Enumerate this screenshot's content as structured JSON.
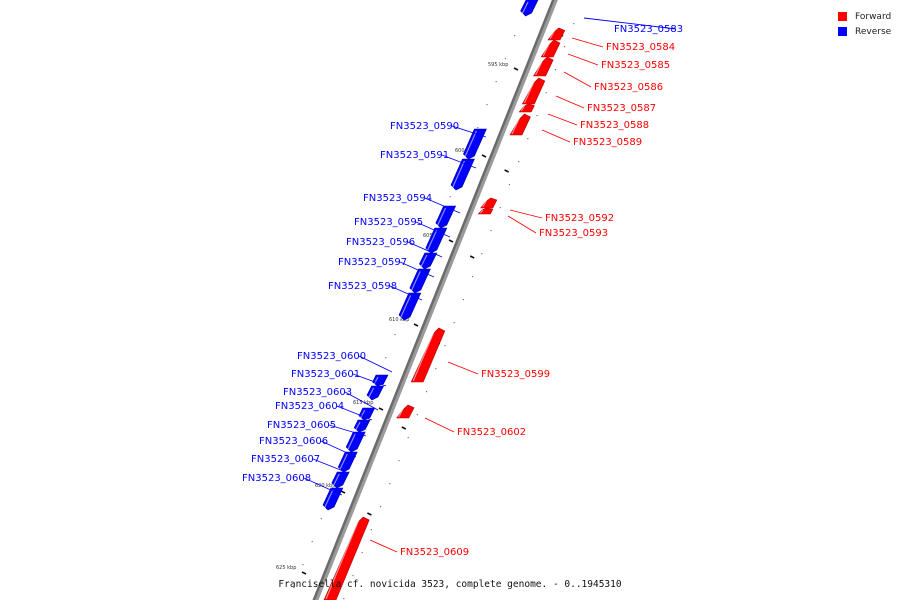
{
  "legend": {
    "forward_label": "Forward",
    "reverse_label": "Reverse",
    "forward_color": "#ff0000",
    "reverse_color": "#0000ff"
  },
  "caption": "Francisella cf. novicida 3523, complete genome. - 0..1945310",
  "scale_labels": [
    "595 kbp",
    "600 kbp",
    "605 kbp",
    "610 kbp",
    "615 kbp",
    "620 kbp",
    "625 kbp"
  ],
  "genes": [
    {
      "id": "FN3523_0583",
      "strand": "reverse"
    },
    {
      "id": "FN3523_0584",
      "strand": "forward"
    },
    {
      "id": "FN3523_0585",
      "strand": "forward"
    },
    {
      "id": "FN3523_0586",
      "strand": "forward"
    },
    {
      "id": "FN3523_0587",
      "strand": "forward"
    },
    {
      "id": "FN3523_0588",
      "strand": "forward"
    },
    {
      "id": "FN3523_0589",
      "strand": "forward"
    },
    {
      "id": "FN3523_0590",
      "strand": "reverse"
    },
    {
      "id": "FN3523_0591",
      "strand": "reverse"
    },
    {
      "id": "FN3523_0592",
      "strand": "forward"
    },
    {
      "id": "FN3523_0593",
      "strand": "forward"
    },
    {
      "id": "FN3523_0594",
      "strand": "reverse"
    },
    {
      "id": "FN3523_0595",
      "strand": "reverse"
    },
    {
      "id": "FN3523_0596",
      "strand": "reverse"
    },
    {
      "id": "FN3523_0597",
      "strand": "reverse"
    },
    {
      "id": "FN3523_0598",
      "strand": "reverse"
    },
    {
      "id": "FN3523_0599",
      "strand": "forward"
    },
    {
      "id": "FN3523_0600",
      "strand": "reverse"
    },
    {
      "id": "FN3523_0601",
      "strand": "reverse"
    },
    {
      "id": "FN3523_0602",
      "strand": "forward"
    },
    {
      "id": "FN3523_0603",
      "strand": "reverse"
    },
    {
      "id": "FN3523_0604",
      "strand": "reverse"
    },
    {
      "id": "FN3523_0605",
      "strand": "reverse"
    },
    {
      "id": "FN3523_0606",
      "strand": "reverse"
    },
    {
      "id": "FN3523_0607",
      "strand": "reverse"
    },
    {
      "id": "FN3523_0608",
      "strand": "reverse"
    },
    {
      "id": "FN3523_0609",
      "strand": "forward"
    }
  ]
}
